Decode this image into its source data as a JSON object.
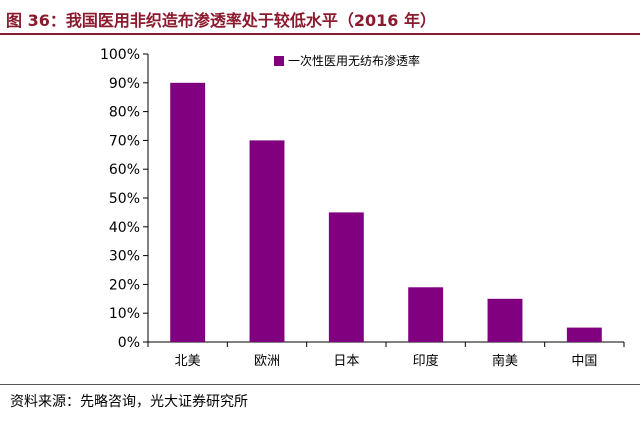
{
  "title": "图 36：我国医用非织造布渗透率处于较低水平（2016 年）",
  "source": "资料来源：先略咨询，光大证券研究所",
  "colors": {
    "title": "#8b1a2e",
    "bar": "#800080",
    "axis": "#000000"
  },
  "chart_data": {
    "type": "bar",
    "categories": [
      "北美",
      "欧洲",
      "日本",
      "印度",
      "南美",
      "中国"
    ],
    "series": [
      {
        "name": "一次性医用无纺布渗透率",
        "values": [
          90,
          70,
          45,
          19,
          15,
          5
        ]
      }
    ],
    "ylim": [
      0,
      100
    ],
    "yticks": [
      "0%",
      "10%",
      "20%",
      "30%",
      "40%",
      "50%",
      "60%",
      "70%",
      "80%",
      "90%",
      "100%"
    ],
    "legend_position": "top",
    "grid": false
  }
}
